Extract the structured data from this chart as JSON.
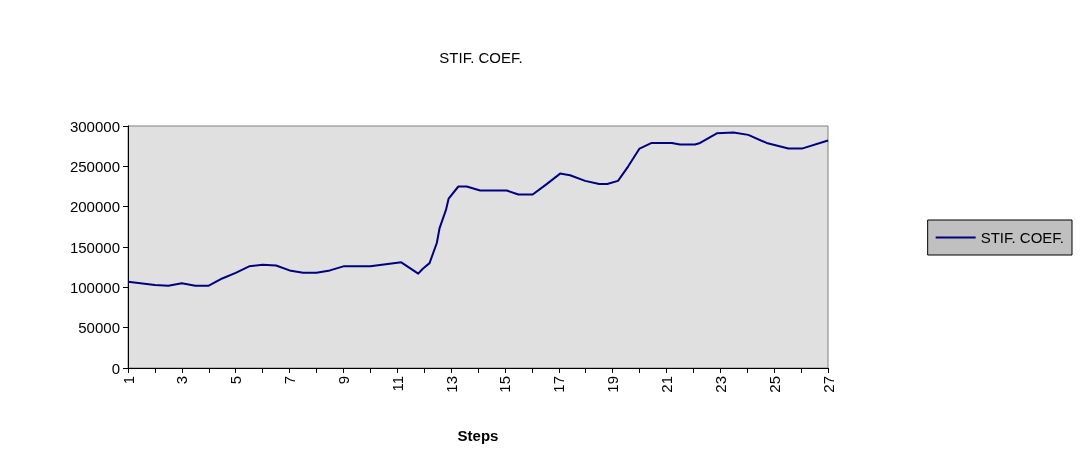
{
  "chart_data": {
    "type": "line",
    "title": "STIF. COEF.",
    "xlabel": "Steps",
    "series": [
      {
        "name": "STIF. COEF.",
        "color": "#000080",
        "x": [
          1,
          2,
          2.5,
          3,
          3.5,
          4,
          4.5,
          5,
          5.5,
          6,
          6.5,
          7,
          7.5,
          8,
          8.5,
          9,
          10,
          11.15,
          11.78,
          11.95,
          12.2,
          12.47,
          12.57,
          12.81,
          12.91,
          13.27,
          13.58,
          14.08,
          15.07,
          15.5,
          16.03,
          16.55,
          17.05,
          17.42,
          17.98,
          18.5,
          18.8,
          19.2,
          19.58,
          20,
          20.45,
          21.2,
          21.5,
          22.06,
          22.25,
          22.87,
          23.49,
          24.04,
          24.72,
          25.53,
          26.03,
          27
        ],
        "values": [
          107000,
          103000,
          102000,
          105000,
          102000,
          102000,
          111000,
          118000,
          126000,
          128000,
          127000,
          121000,
          118000,
          118000,
          121000,
          126000,
          126000,
          131000,
          117000,
          123000,
          130000,
          155000,
          173000,
          196000,
          210000,
          225000,
          225000,
          220000,
          220000,
          215000,
          215000,
          228000,
          241000,
          239000,
          232000,
          228000,
          228000,
          232000,
          250000,
          272000,
          279000,
          279000,
          277000,
          277000,
          279000,
          291000,
          292000,
          289000,
          279000,
          272000,
          272000,
          282000
        ]
      }
    ],
    "xlim": [
      1,
      27
    ],
    "xticks": [
      1,
      {
        "value": 2,
        "label": null
      },
      3,
      {
        "value": 4,
        "label": null
      },
      5,
      {
        "value": 6,
        "label": null
      },
      7,
      {
        "value": 8,
        "label": null
      },
      9,
      {
        "value": 10,
        "label": null
      },
      11,
      {
        "value": 12,
        "label": null
      },
      13,
      {
        "value": 14,
        "label": null
      },
      15,
      {
        "value": 16,
        "label": null
      },
      17,
      {
        "value": 18,
        "label": null
      },
      19,
      {
        "value": 20,
        "label": null
      },
      21,
      {
        "value": 22,
        "label": null
      },
      23,
      {
        "value": 24,
        "label": null
      },
      25,
      {
        "value": 26,
        "label": null
      },
      27
    ],
    "ylim": [
      0,
      300000
    ],
    "yticks": [
      0,
      50000,
      100000,
      150000,
      200000,
      250000,
      300000
    ],
    "grid": false,
    "legend": "right",
    "marker": "none",
    "line_style": "solid"
  }
}
